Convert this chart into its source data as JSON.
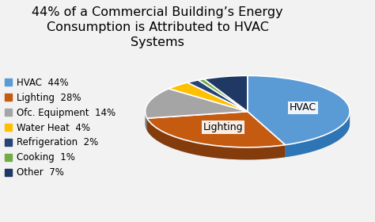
{
  "title": "44% of a Commercial Building’s Energy\nConsumption is Attributed to HVAC\nSystems",
  "slices": [
    44,
    28,
    14,
    4,
    2,
    1,
    7
  ],
  "labels": [
    "HVAC",
    "Lighting",
    "Ofc. Equipment",
    "Water Heat",
    "Refrigeration",
    "Cooking",
    "Other"
  ],
  "legend_labels": [
    "HVAC  44%",
    "Lighting  28%",
    "Ofc. Equipment  14%",
    "Water Heat  4%",
    "Refrigeration  2%",
    "Cooking  1%",
    "Other  7%"
  ],
  "colors": [
    "#5B9BD5",
    "#C55A11",
    "#A5A5A5",
    "#FFC000",
    "#264478",
    "#70AD47",
    "#203864"
  ],
  "dark_colors": [
    "#2E75B6",
    "#843C0C",
    "#767171",
    "#B8860B",
    "#1A2F52",
    "#375623",
    "#10203C"
  ],
  "pie_labels": [
    "HVAC",
    "Lighting",
    "",
    "",
    "",
    "",
    ""
  ],
  "startangle": 90,
  "background_color": "#F2F2F2",
  "title_fontsize": 11.5,
  "legend_fontsize": 8.5,
  "depth": 0.12
}
